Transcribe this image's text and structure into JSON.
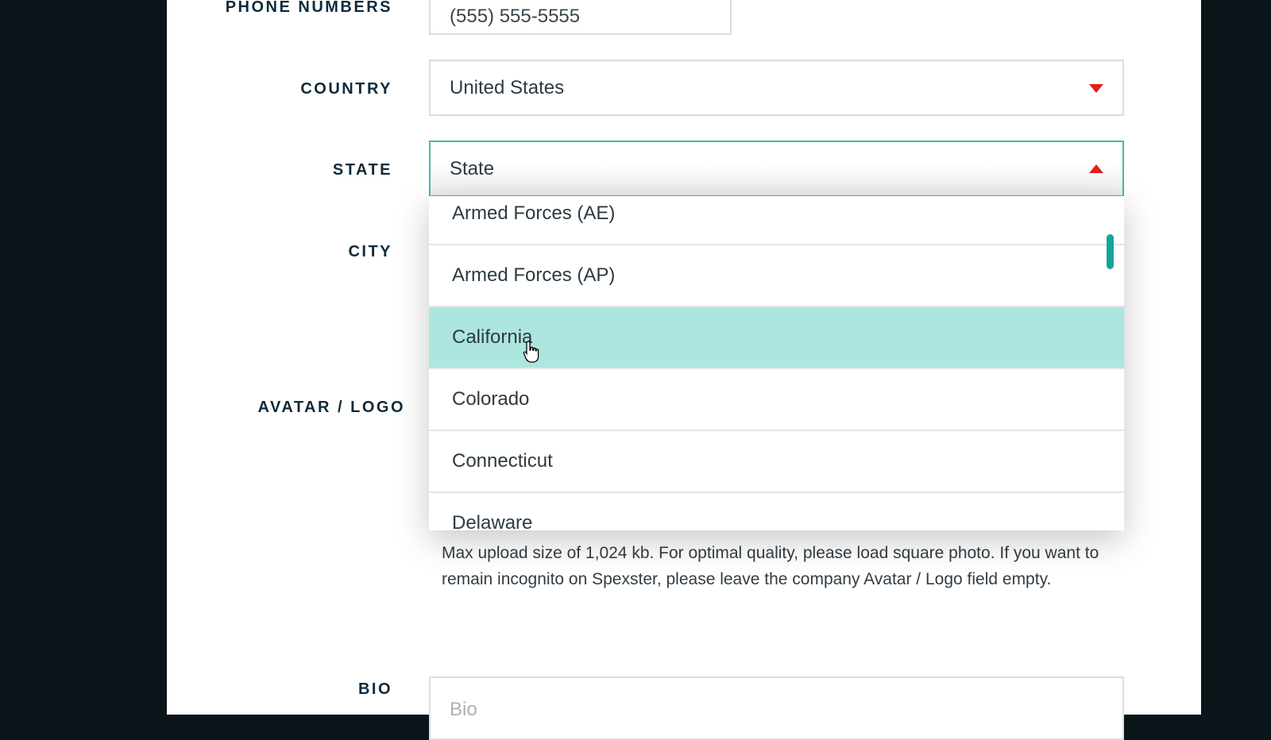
{
  "form": {
    "phone": {
      "label": "PHONE NUMBERS",
      "value": "(555) 555-5555"
    },
    "country": {
      "label": "COUNTRY",
      "value": "United States"
    },
    "state": {
      "label": "STATE",
      "placeholder": "State",
      "open": true,
      "options": [
        "Armed Forces (AE)",
        "Armed Forces (AP)",
        "California",
        "Colorado",
        "Connecticut",
        "Delaware"
      ],
      "highlighted": "California"
    },
    "city": {
      "label": "CITY"
    },
    "avatar": {
      "label": "AVATAR / LOGO",
      "help": "Max upload size of 1,024 kb. For optimal quality, please load square photo. If you want to remain incognito on Spexster, please leave the company Avatar / Logo field empty."
    },
    "bio": {
      "label": "BIO",
      "placeholder": "Bio"
    }
  },
  "colors": {
    "accent": "#17a49a",
    "highlight": "#ade5df",
    "arrow": "#e02020",
    "label": "#0f2a3a"
  }
}
